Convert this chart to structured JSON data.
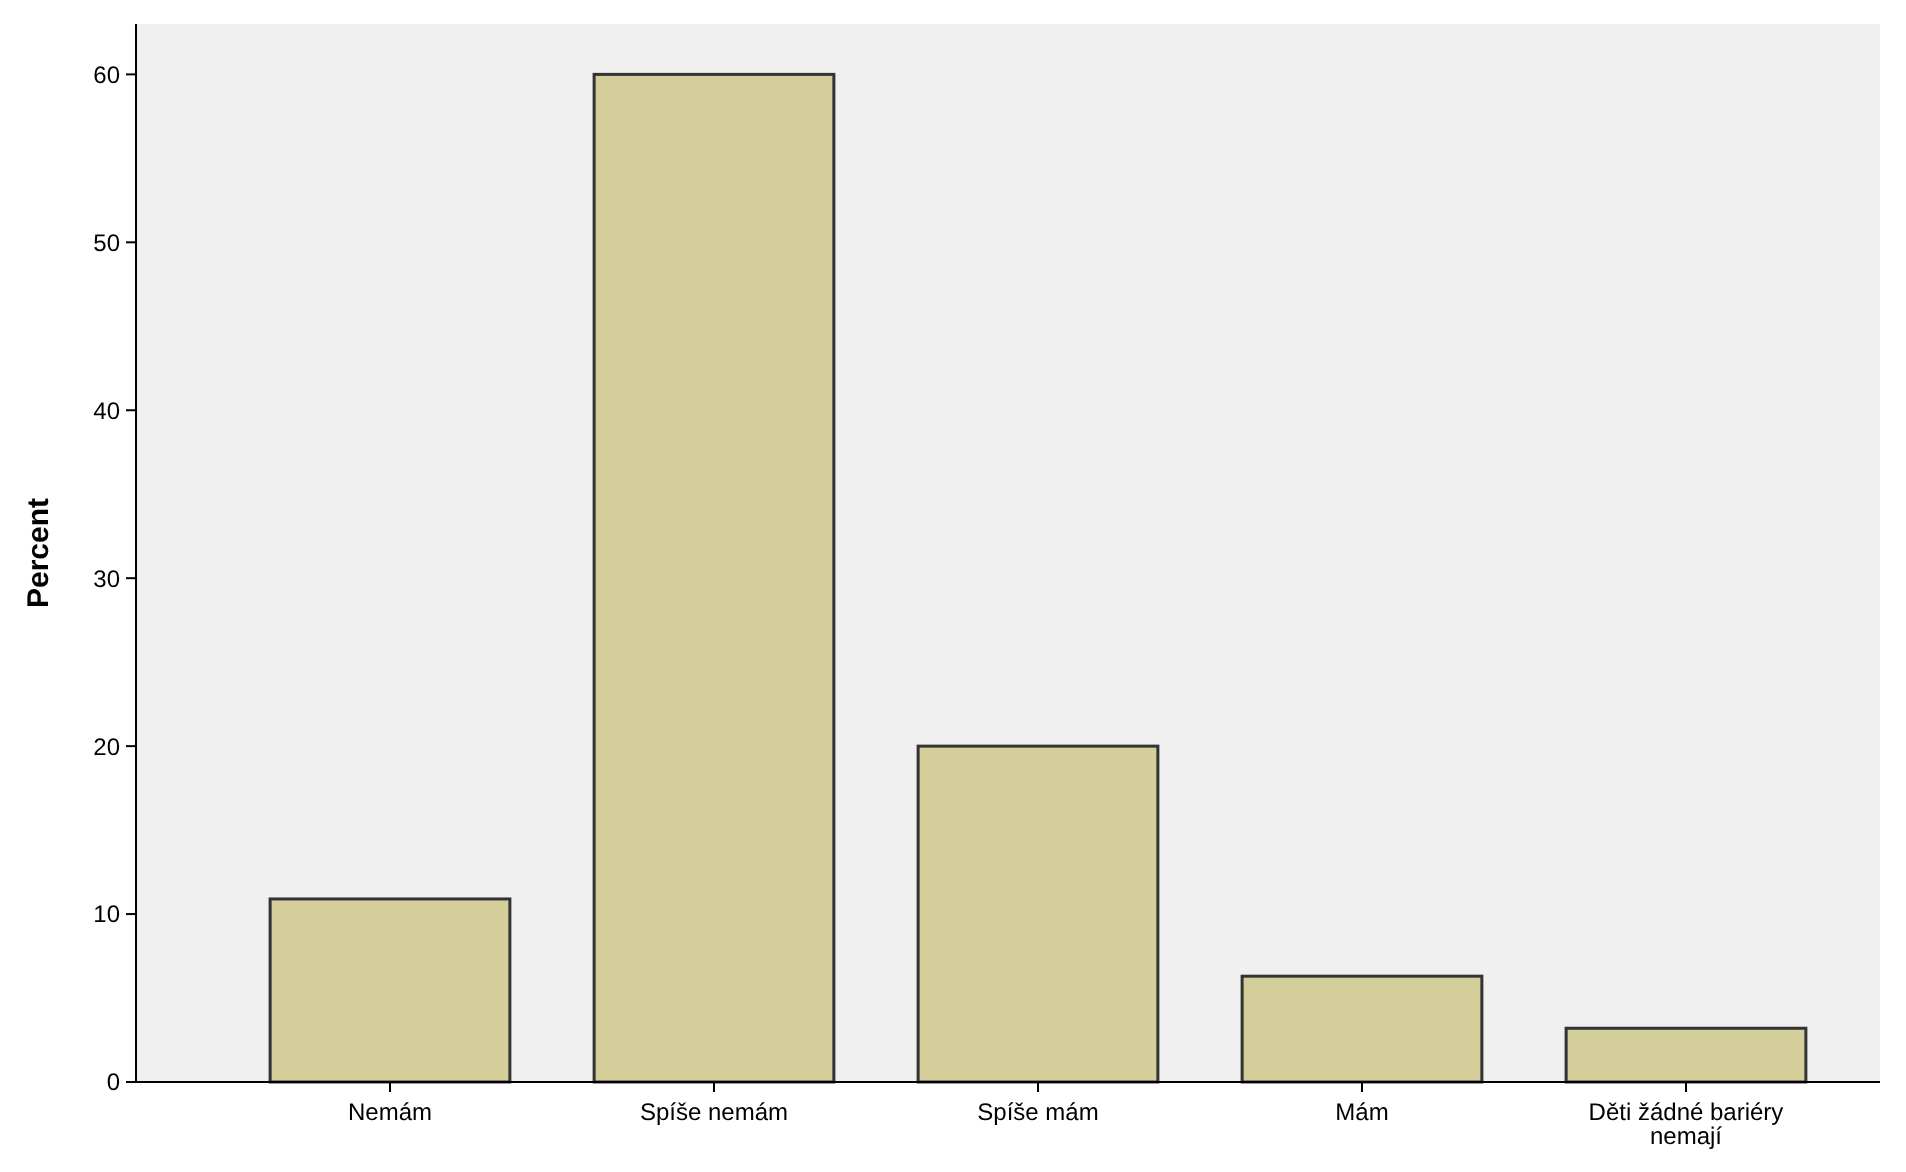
{
  "chart_data": {
    "type": "bar",
    "ylabel": "Percent",
    "categories": [
      "Nemám",
      "Spíše nemám",
      "Spíše mám",
      "Mám",
      "Děti žádné bariéry nemají"
    ],
    "values": [
      10.9,
      60,
      20,
      6.3,
      3.2
    ],
    "color": "#d3ce9a",
    "ylim": [
      0,
      63
    ],
    "yticks": [
      0,
      10,
      20,
      30,
      40,
      50,
      60
    ],
    "grid": false
  }
}
